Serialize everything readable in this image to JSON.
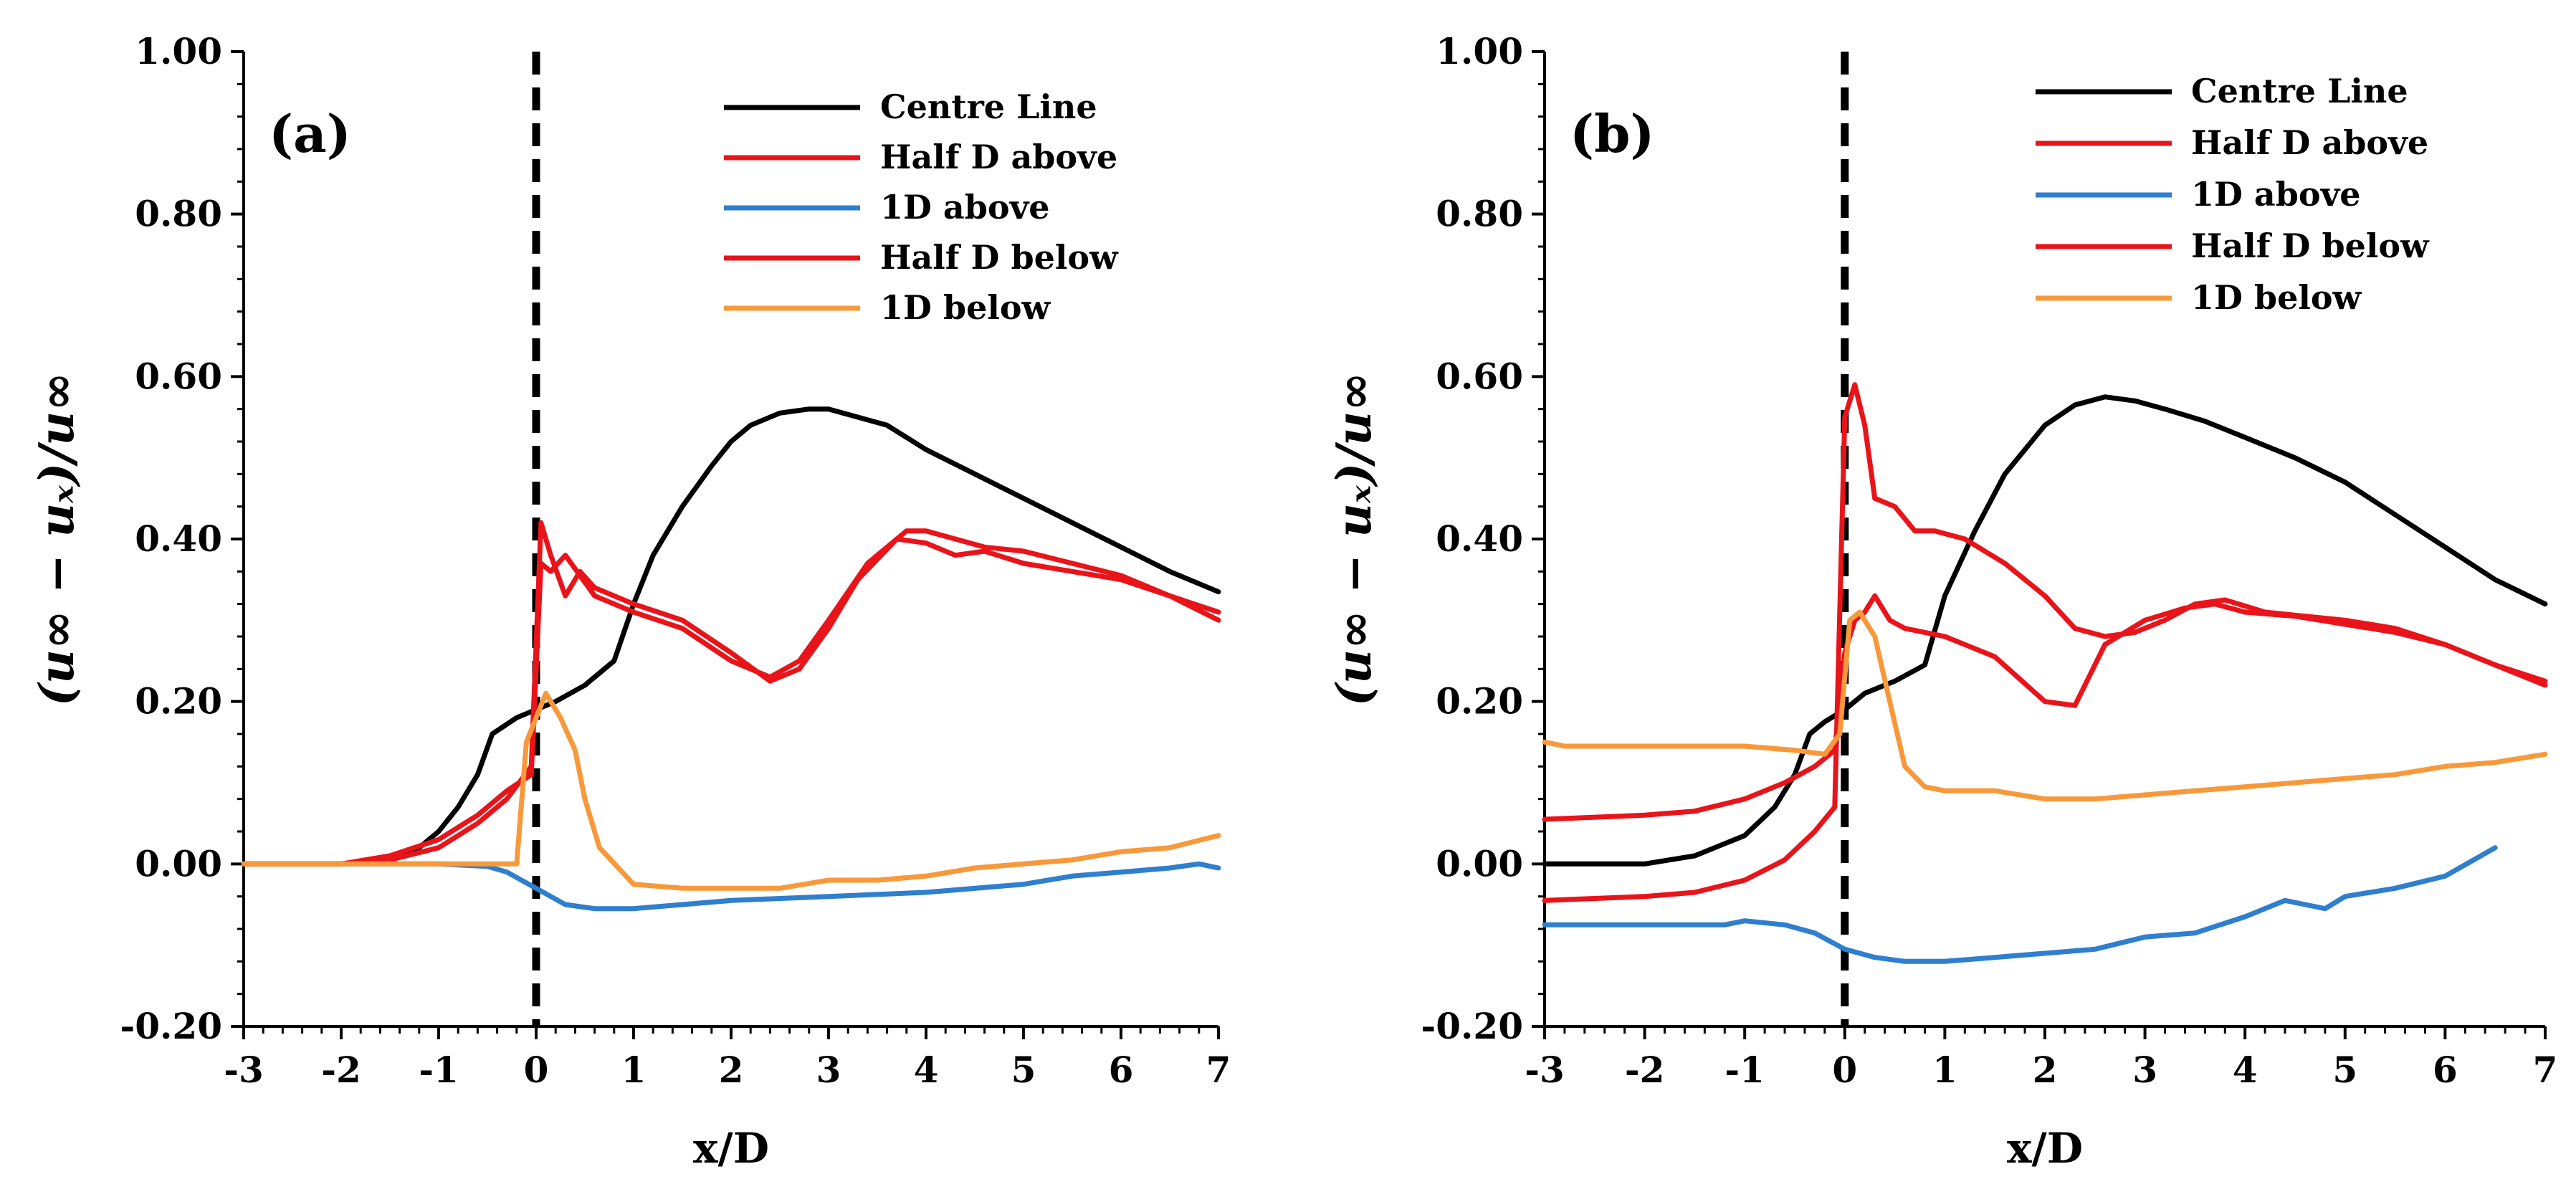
{
  "figure": {
    "description_title": ""
  },
  "chart_data": [
    {
      "type": "line",
      "panel_label": "(a)",
      "title": "",
      "xlabel": "x/D",
      "ylabel": "(u∞ − uₓ)/u∞",
      "xlim": [
        -3,
        7
      ],
      "ylim": [
        -0.2,
        1.0
      ],
      "x_ticks": [
        "-3",
        "-2",
        "-1",
        "0",
        "1",
        "2",
        "3",
        "4",
        "5",
        "6",
        "7"
      ],
      "y_ticks": [
        "-0.20",
        "0.00",
        "0.20",
        "0.40",
        "0.60",
        "0.80",
        "1.00"
      ],
      "legend_position": "top-right",
      "annotations": [
        {
          "type": "vertical-dashed-line",
          "x": 0
        }
      ],
      "series": [
        {
          "name": "Centre Line",
          "color": "#000000",
          "x": [
            -3,
            -2,
            -1.6,
            -1.4,
            -1.2,
            -1.0,
            -0.8,
            -0.6,
            -0.45,
            -0.2,
            0.0,
            0.2,
            0.5,
            0.8,
            1.0,
            1.2,
            1.5,
            1.8,
            2.0,
            2.2,
            2.5,
            2.8,
            3.0,
            3.3,
            3.6,
            4.0,
            4.5,
            5.0,
            5.5,
            6.0,
            6.5,
            7.0
          ],
          "y": [
            0.0,
            0.0,
            0.005,
            0.01,
            0.02,
            0.04,
            0.07,
            0.11,
            0.16,
            0.18,
            0.19,
            0.2,
            0.22,
            0.25,
            0.32,
            0.38,
            0.44,
            0.49,
            0.52,
            0.54,
            0.555,
            0.56,
            0.56,
            0.55,
            0.54,
            0.51,
            0.48,
            0.45,
            0.42,
            0.39,
            0.36,
            0.335
          ]
        },
        {
          "name": "Half D above",
          "color": "#e8141a",
          "x": [
            -3,
            -2,
            -1.5,
            -1.0,
            -0.6,
            -0.3,
            -0.05,
            0.05,
            0.15,
            0.3,
            0.45,
            0.6,
            1.0,
            1.5,
            2.0,
            2.4,
            2.7,
            3.0,
            3.3,
            3.7,
            4.0,
            4.3,
            4.6,
            5.0,
            5.5,
            6.0,
            6.5,
            7.0
          ],
          "y": [
            0.0,
            0.0,
            0.005,
            0.02,
            0.05,
            0.08,
            0.12,
            0.42,
            0.38,
            0.33,
            0.36,
            0.34,
            0.32,
            0.3,
            0.26,
            0.225,
            0.24,
            0.29,
            0.35,
            0.4,
            0.395,
            0.38,
            0.385,
            0.37,
            0.36,
            0.35,
            0.33,
            0.31
          ]
        },
        {
          "name": "1D above",
          "color": "#2f7fce",
          "x": [
            -3,
            -2,
            -1,
            -0.5,
            -0.3,
            0.0,
            0.3,
            0.6,
            1.0,
            1.5,
            2.0,
            3.0,
            4.0,
            5.0,
            5.5,
            6.0,
            6.5,
            6.8,
            7.0
          ],
          "y": [
            0.0,
            0.0,
            0.0,
            -0.003,
            -0.01,
            -0.03,
            -0.05,
            -0.055,
            -0.055,
            -0.05,
            -0.045,
            -0.04,
            -0.035,
            -0.025,
            -0.015,
            -0.01,
            -0.005,
            0.0,
            -0.005
          ]
        },
        {
          "name": "Half D below",
          "color": "#e8141a",
          "x": [
            -3,
            -2,
            -1.5,
            -1.0,
            -0.6,
            -0.3,
            -0.05,
            0.05,
            0.15,
            0.3,
            0.6,
            1.0,
            1.5,
            2.0,
            2.4,
            2.7,
            3.0,
            3.4,
            3.8,
            4.0,
            4.3,
            4.6,
            5.0,
            5.5,
            6.0,
            6.5,
            7.0
          ],
          "y": [
            0.0,
            0.0,
            0.01,
            0.03,
            0.06,
            0.09,
            0.11,
            0.37,
            0.36,
            0.38,
            0.33,
            0.31,
            0.29,
            0.25,
            0.23,
            0.25,
            0.3,
            0.37,
            0.41,
            0.41,
            0.4,
            0.39,
            0.385,
            0.37,
            0.355,
            0.33,
            0.3
          ]
        },
        {
          "name": "1D below",
          "color": "#f7993b",
          "x": [
            -3,
            -2,
            -1,
            -0.2,
            -0.1,
            0.0,
            0.1,
            0.25,
            0.4,
            0.5,
            0.65,
            1.0,
            1.5,
            2.0,
            2.5,
            3.0,
            3.5,
            4.0,
            4.5,
            5.0,
            5.5,
            6.0,
            6.5,
            7.0
          ],
          "y": [
            0.0,
            0.0,
            0.0,
            0.0,
            0.15,
            0.18,
            0.21,
            0.18,
            0.14,
            0.08,
            0.02,
            -0.025,
            -0.03,
            -0.03,
            -0.03,
            -0.02,
            -0.02,
            -0.015,
            -0.005,
            0.0,
            0.005,
            0.015,
            0.02,
            0.035
          ]
        }
      ]
    },
    {
      "type": "line",
      "panel_label": "(b)",
      "title": "",
      "xlabel": "x/D",
      "ylabel": "(u∞ − uₓ)/u∞",
      "xlim": [
        -3,
        7
      ],
      "ylim": [
        -0.2,
        1.0
      ],
      "x_ticks": [
        "-3",
        "-2",
        "-1",
        "0",
        "1",
        "2",
        "3",
        "4",
        "5",
        "6",
        "7"
      ],
      "y_ticks": [
        "-0.20",
        "0.00",
        "0.20",
        "0.40",
        "0.60",
        "0.80",
        "1.00"
      ],
      "legend_position": "top-right",
      "annotations": [
        {
          "type": "vertical-dashed-line",
          "x": 0
        }
      ],
      "series": [
        {
          "name": "Centre Line",
          "color": "#000000",
          "x": [
            -3,
            -2,
            -1.5,
            -1.0,
            -0.7,
            -0.5,
            -0.35,
            -0.2,
            0.0,
            0.2,
            0.5,
            0.8,
            1.0,
            1.3,
            1.6,
            2.0,
            2.3,
            2.6,
            2.9,
            3.2,
            3.6,
            4.0,
            4.5,
            5.0,
            5.5,
            6.0,
            6.5,
            7.0
          ],
          "y": [
            0.0,
            0.0,
            0.01,
            0.035,
            0.07,
            0.11,
            0.16,
            0.175,
            0.19,
            0.21,
            0.225,
            0.245,
            0.33,
            0.41,
            0.48,
            0.54,
            0.565,
            0.575,
            0.57,
            0.56,
            0.545,
            0.525,
            0.5,
            0.47,
            0.43,
            0.39,
            0.35,
            0.32
          ]
        },
        {
          "name": "Half D above",
          "color": "#e8141a",
          "x": [
            -3,
            -2,
            -1.5,
            -1.0,
            -0.6,
            -0.3,
            -0.1,
            0.0,
            0.1,
            0.2,
            0.3,
            0.45,
            0.6,
            1.0,
            1.5,
            2.0,
            2.3,
            2.6,
            3.0,
            3.4,
            3.7,
            4.0,
            4.5,
            5.0,
            5.5,
            6.0,
            6.5,
            7.0
          ],
          "y": [
            0.055,
            0.06,
            0.065,
            0.08,
            0.1,
            0.12,
            0.14,
            0.26,
            0.3,
            0.31,
            0.33,
            0.3,
            0.29,
            0.28,
            0.255,
            0.2,
            0.195,
            0.27,
            0.3,
            0.315,
            0.32,
            0.31,
            0.305,
            0.295,
            0.285,
            0.27,
            0.245,
            0.22
          ]
        },
        {
          "name": "1D above",
          "color": "#2f7fce",
          "x": [
            -3,
            -2,
            -1.2,
            -1.0,
            -0.6,
            -0.3,
            0.0,
            0.3,
            0.6,
            1.0,
            1.5,
            2.0,
            2.5,
            3.0,
            3.5,
            4.0,
            4.4,
            4.6,
            4.8,
            5.0,
            5.5,
            6.0,
            6.5
          ],
          "y": [
            -0.075,
            -0.075,
            -0.075,
            -0.07,
            -0.075,
            -0.085,
            -0.105,
            -0.115,
            -0.12,
            -0.12,
            -0.115,
            -0.11,
            -0.105,
            -0.09,
            -0.085,
            -0.065,
            -0.045,
            -0.05,
            -0.055,
            -0.04,
            -0.03,
            -0.015,
            0.02
          ]
        },
        {
          "name": "Half D below",
          "color": "#e8141a",
          "x": [
            -3,
            -2,
            -1.5,
            -1.0,
            -0.6,
            -0.3,
            -0.1,
            0.0,
            0.1,
            0.2,
            0.3,
            0.5,
            0.7,
            0.9,
            1.2,
            1.6,
            2.0,
            2.3,
            2.6,
            2.9,
            3.2,
            3.5,
            3.8,
            4.2,
            4.6,
            5.0,
            5.5,
            6.0,
            6.5,
            7.0
          ],
          "y": [
            -0.045,
            -0.04,
            -0.035,
            -0.02,
            0.005,
            0.04,
            0.07,
            0.55,
            0.59,
            0.54,
            0.45,
            0.44,
            0.41,
            0.41,
            0.4,
            0.37,
            0.33,
            0.29,
            0.28,
            0.285,
            0.3,
            0.32,
            0.325,
            0.31,
            0.305,
            0.3,
            0.29,
            0.27,
            0.245,
            0.225
          ]
        },
        {
          "name": "1D below",
          "color": "#f7993b",
          "x": [
            -3,
            -2.8,
            -2,
            -1,
            -0.5,
            -0.2,
            -0.05,
            0.05,
            0.15,
            0.3,
            0.45,
            0.6,
            0.8,
            1.0,
            1.5,
            2.0,
            2.5,
            3.0,
            3.5,
            4.0,
            4.5,
            5.0,
            5.5,
            6.0,
            6.5,
            7.0
          ],
          "y": [
            0.15,
            0.145,
            0.145,
            0.145,
            0.14,
            0.135,
            0.16,
            0.3,
            0.31,
            0.28,
            0.2,
            0.12,
            0.095,
            0.09,
            0.09,
            0.08,
            0.08,
            0.085,
            0.09,
            0.095,
            0.1,
            0.105,
            0.11,
            0.12,
            0.125,
            0.135
          ]
        }
      ]
    }
  ]
}
